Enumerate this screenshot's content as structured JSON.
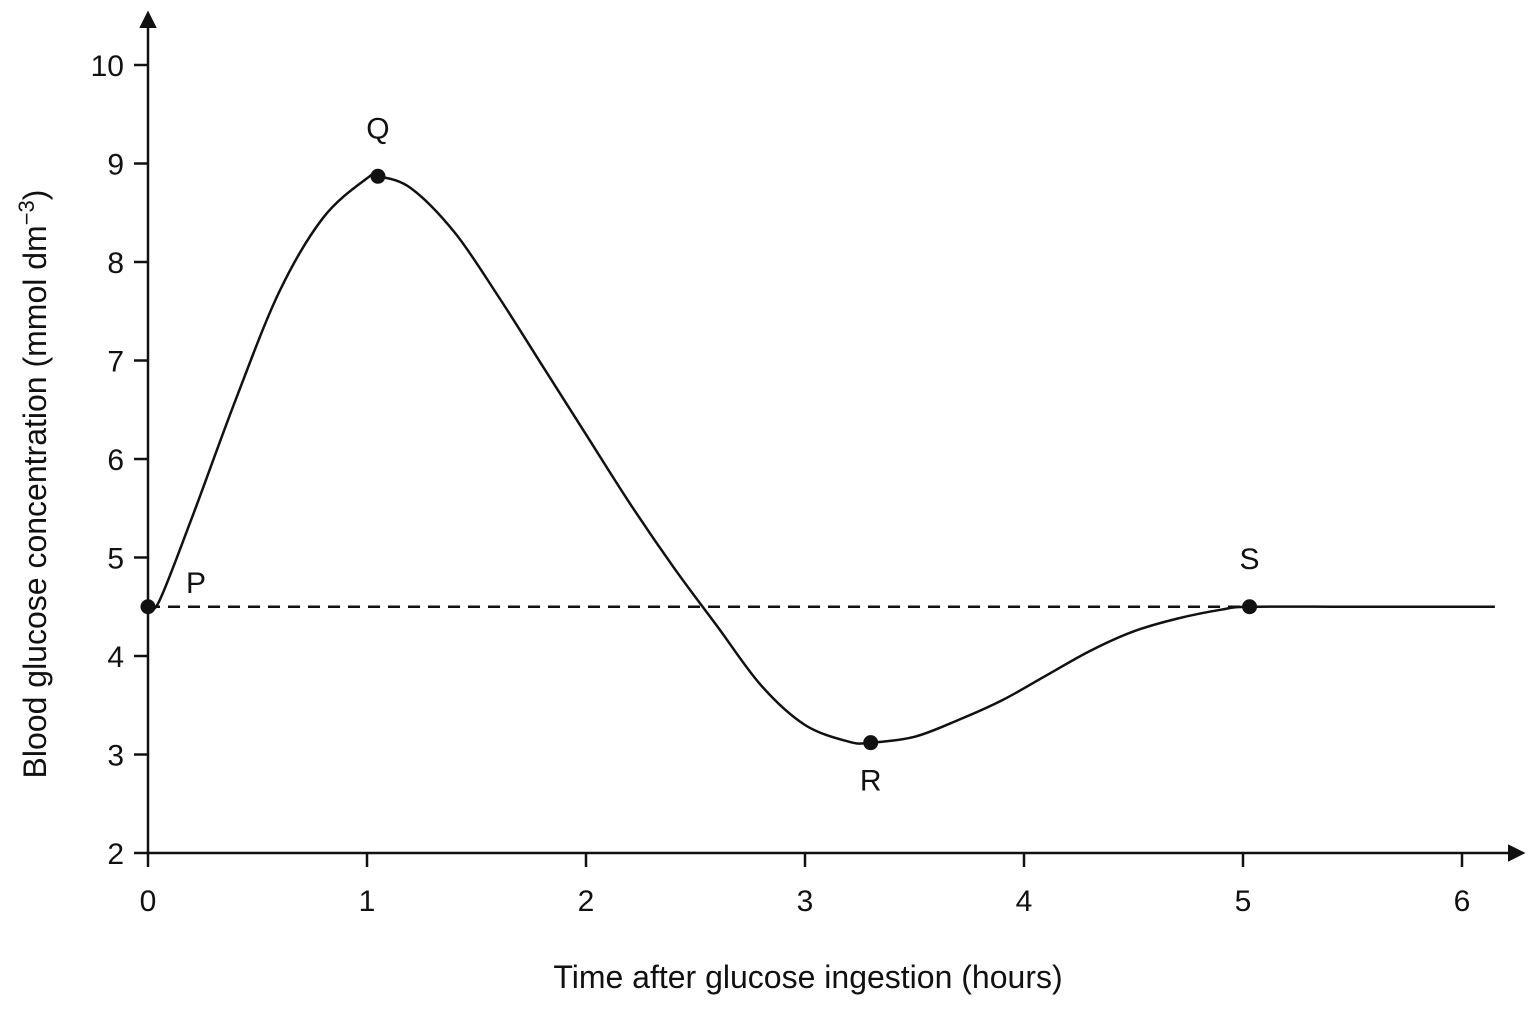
{
  "chart_data": {
    "type": "line",
    "title": "",
    "xlabel": "Time after glucose ingestion (hours)",
    "ylabel_main": "Blood glucose concentration (mmol dm",
    "ylabel_sup": "−3",
    "ylabel_close": ")",
    "xlim": [
      0,
      6.2
    ],
    "ylim": [
      2,
      10.5
    ],
    "x_ticks": [
      0,
      1,
      2,
      3,
      4,
      5,
      6
    ],
    "x_tick_labels": [
      "0",
      "1",
      "2",
      "3",
      "4",
      "5",
      "6"
    ],
    "y_ticks": [
      2,
      3,
      4,
      5,
      6,
      7,
      8,
      9,
      10
    ],
    "y_tick_labels": [
      "2",
      "3",
      "4",
      "5",
      "6",
      "7",
      "8",
      "9",
      "10"
    ],
    "grid": false,
    "series": [
      {
        "x": [
          0,
          0.05,
          0.2,
          0.4,
          0.6,
          0.8,
          1.0,
          1.05,
          1.2,
          1.4,
          1.6,
          1.8,
          2.0,
          2.2,
          2.4,
          2.6,
          2.8,
          3.0,
          3.2,
          3.3,
          3.5,
          3.7,
          3.9,
          4.1,
          4.3,
          4.5,
          4.7,
          4.9,
          5.03,
          5.5,
          6.0,
          6.15
        ],
        "y": [
          4.5,
          4.55,
          5.4,
          6.6,
          7.7,
          8.45,
          8.85,
          8.87,
          8.75,
          8.3,
          7.65,
          6.95,
          6.25,
          5.55,
          4.9,
          4.3,
          3.7,
          3.3,
          3.13,
          3.12,
          3.18,
          3.35,
          3.55,
          3.8,
          4.05,
          4.25,
          4.38,
          4.47,
          4.5,
          4.5,
          4.5,
          4.5
        ],
        "style": "solid",
        "color": "#111111"
      }
    ],
    "reference_line": {
      "y": 4.5,
      "x_from": 0,
      "x_to": 5.03,
      "style": "dashed"
    },
    "points": [
      {
        "label": "P",
        "x": 0,
        "y": 4.5,
        "label_position": "upper-right"
      },
      {
        "label": "Q",
        "x": 1.05,
        "y": 8.87,
        "label_position": "above"
      },
      {
        "label": "R",
        "x": 3.3,
        "y": 3.12,
        "label_position": "below"
      },
      {
        "label": "S",
        "x": 5.03,
        "y": 4.5,
        "label_position": "above"
      }
    ],
    "colors": {
      "line": "#111111",
      "background": "#ffffff"
    }
  }
}
